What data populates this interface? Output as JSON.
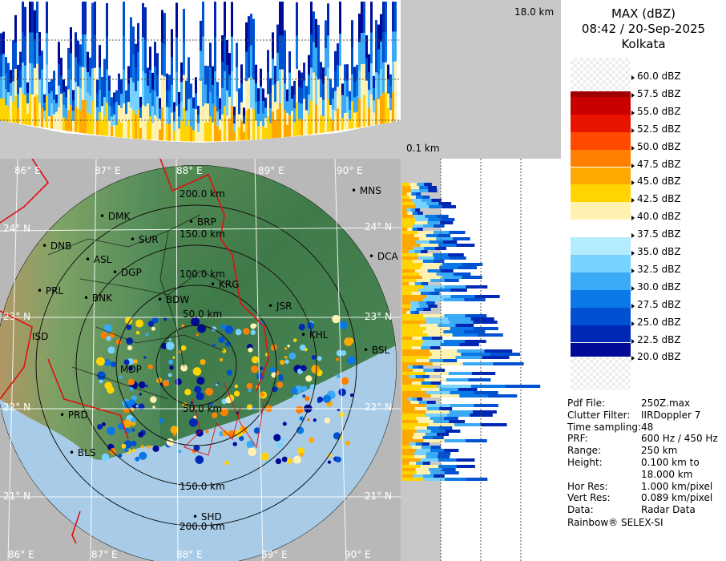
{
  "header": {
    "product": "MAX (dBZ)",
    "datetime": "08:42 / 20-Sep-2025",
    "station": "Kolkata"
  },
  "height_top_label": "18.0 km",
  "height_bottom_label": "0.1 km",
  "legend": {
    "levels": [
      {
        "label": "60.0 dBZ",
        "color": "#ffffff"
      },
      {
        "label": "57.5 dBZ",
        "color": "#a00000"
      },
      {
        "label": "55.0 dBZ",
        "color": "#c80000"
      },
      {
        "label": "52.5 dBZ",
        "color": "#e81400"
      },
      {
        "label": "50.0 dBZ",
        "color": "#ff4a00"
      },
      {
        "label": "47.5 dBZ",
        "color": "#ff8000"
      },
      {
        "label": "45.0 dBZ",
        "color": "#ffa800"
      },
      {
        "label": "42.5 dBZ",
        "color": "#ffd400"
      },
      {
        "label": "40.0 dBZ",
        "color": "#fff2b0"
      },
      {
        "label": "37.5 dBZ",
        "color": "#ffffff"
      },
      {
        "label": "35.0 dBZ",
        "color": "#b4ecff"
      },
      {
        "label": "32.5 dBZ",
        "color": "#78d2ff"
      },
      {
        "label": "30.0 dBZ",
        "color": "#3aaaf6"
      },
      {
        "label": "27.5 dBZ",
        "color": "#0a78e6"
      },
      {
        "label": "25.0 dBZ",
        "color": "#0050d2"
      },
      {
        "label": "22.5 dBZ",
        "color": "#0028b4"
      },
      {
        "label": "20.0 dBZ",
        "color": "#000a96"
      }
    ]
  },
  "metadata": [
    {
      "key": "Pdf File:",
      "value": "250Z.max"
    },
    {
      "key": "Clutter Filter:",
      "value": "IIRDoppler 7"
    },
    {
      "key": "Time sampling:",
      "value": "48"
    },
    {
      "key": "PRF:",
      "value": "600 Hz / 450 Hz"
    },
    {
      "key": "Range:",
      "value": "250 km"
    },
    {
      "key": "Height:",
      "value": "0.100 km to"
    },
    {
      "key": "",
      "value": "18.000 km"
    },
    {
      "key": "Hor Res:",
      "value": "1.000 km/pixel"
    },
    {
      "key": "Vert Res:",
      "value": "0.089 km/pixel"
    },
    {
      "key": "Data:",
      "value": "Radar Data"
    }
  ],
  "footer": "Rainbow® SELEX-SI",
  "map": {
    "lon_labels": [
      "86° E",
      "87° E",
      "88° E",
      "89° E",
      "90° E"
    ],
    "lon_labels_bottom": [
      "86° E",
      "87° E",
      "88° E",
      "89° E",
      "90° E"
    ],
    "lat_labels_left": [
      "24° N",
      "23° N",
      "22° N",
      "21° N"
    ],
    "lat_labels_right": [
      "24° N",
      "23° N",
      "22° N",
      "21° N"
    ],
    "range_labels": [
      "200.0 km",
      "150.0 km",
      "100.0 km",
      "50.0 km",
      "50.0 km",
      "150.0 km",
      "200.0 km"
    ],
    "cities": [
      "MNS",
      "DMK",
      "BRP",
      "SUR",
      "DNB",
      "ASL",
      "DGP",
      "DCA",
      "KRG",
      "PRL",
      "BNK",
      "BDW",
      "JSR",
      "ISD",
      "KHL",
      "BSL",
      "MDP",
      "PRD",
      "BLS",
      "SHD"
    ]
  },
  "colors": {
    "map_land_dark": "#4a7a4a",
    "map_sea": "#a8cce8",
    "border_red": "#e01010"
  }
}
